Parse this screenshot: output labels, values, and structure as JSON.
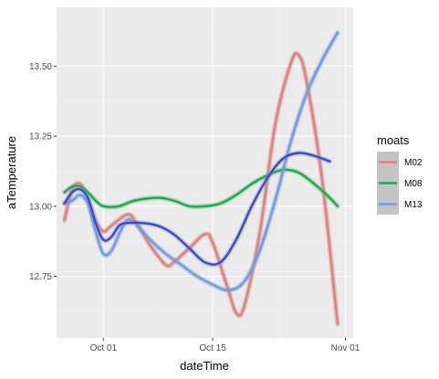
{
  "chart_data": {
    "type": "line",
    "xlabel": "dateTime",
    "ylabel": "aTemperature",
    "xlim": [
      "2020-09-25",
      "2020-11-02"
    ],
    "ylim": [
      12.53,
      13.71
    ],
    "x_ticks": [
      {
        "value": "2020-10-01",
        "label": "Oct 01"
      },
      {
        "value": "2020-10-15",
        "label": "Oct 15"
      },
      {
        "value": "2020-11-01",
        "label": "Nov 01"
      }
    ],
    "y_ticks": [
      {
        "value": 12.75,
        "label": "12.75"
      },
      {
        "value": 13.0,
        "label": "13.00"
      },
      {
        "value": 13.25,
        "label": "13.25"
      },
      {
        "value": 13.5,
        "label": "13.50"
      }
    ],
    "grid": true,
    "legend": {
      "title": "moats",
      "position": "right"
    },
    "series": [
      {
        "name": "M02",
        "color": "#F8766D",
        "points": [
          [
            "2020-09-26",
            12.95
          ],
          [
            "2020-09-27",
            13.06
          ],
          [
            "2020-09-28",
            13.08
          ],
          [
            "2020-09-29",
            13.03
          ],
          [
            "2020-09-30",
            12.95
          ],
          [
            "2020-10-01",
            12.91
          ],
          [
            "2020-10-02",
            12.93
          ],
          [
            "2020-10-04",
            12.97
          ],
          [
            "2020-10-05",
            12.95
          ],
          [
            "2020-10-07",
            12.86
          ],
          [
            "2020-10-09",
            12.79
          ],
          [
            "2020-10-10",
            12.8
          ],
          [
            "2020-10-12",
            12.85
          ],
          [
            "2020-10-14",
            12.9
          ],
          [
            "2020-10-15",
            12.87
          ],
          [
            "2020-10-17",
            12.7
          ],
          [
            "2020-10-18",
            12.62
          ],
          [
            "2020-10-19",
            12.64
          ],
          [
            "2020-10-21",
            12.9
          ],
          [
            "2020-10-23",
            13.29
          ],
          [
            "2020-10-25",
            13.51
          ],
          [
            "2020-10-26",
            13.54
          ],
          [
            "2020-10-27",
            13.45
          ],
          [
            "2020-10-29",
            13.1
          ],
          [
            "2020-10-31",
            12.58
          ]
        ]
      },
      {
        "name": "M08",
        "color": "#00BA38",
        "points": [
          [
            "2020-09-26",
            13.05
          ],
          [
            "2020-09-27",
            13.07
          ],
          [
            "2020-09-28",
            13.07
          ],
          [
            "2020-09-29",
            13.05
          ],
          [
            "2020-09-30",
            13.02
          ],
          [
            "2020-10-01",
            13.0
          ],
          [
            "2020-10-03",
            13.0
          ],
          [
            "2020-10-05",
            13.02
          ],
          [
            "2020-10-08",
            13.03
          ],
          [
            "2020-10-10",
            13.02
          ],
          [
            "2020-10-12",
            13.0
          ],
          [
            "2020-10-14",
            13.0
          ],
          [
            "2020-10-16",
            13.01
          ],
          [
            "2020-10-18",
            13.04
          ],
          [
            "2020-10-20",
            13.08
          ],
          [
            "2020-10-22",
            13.11
          ],
          [
            "2020-10-24",
            13.13
          ],
          [
            "2020-10-26",
            13.12
          ],
          [
            "2020-10-28",
            13.08
          ],
          [
            "2020-10-30",
            13.03
          ],
          [
            "2020-10-31",
            13.0
          ]
        ]
      },
      {
        "name": "M13",
        "color": "#619CFF",
        "points": [
          [
            "2020-09-26",
            13.01
          ],
          [
            "2020-09-27",
            13.02
          ],
          [
            "2020-09-28",
            13.04
          ],
          [
            "2020-09-29",
            13.01
          ],
          [
            "2020-09-30",
            12.91
          ],
          [
            "2020-10-01",
            12.83
          ],
          [
            "2020-10-02",
            12.84
          ],
          [
            "2020-10-03",
            12.9
          ],
          [
            "2020-10-04",
            12.95
          ],
          [
            "2020-10-05",
            12.94
          ],
          [
            "2020-10-07",
            12.88
          ],
          [
            "2020-10-09",
            12.83
          ],
          [
            "2020-10-11",
            12.79
          ],
          [
            "2020-10-13",
            12.75
          ],
          [
            "2020-10-15",
            12.72
          ],
          [
            "2020-10-17",
            12.7
          ],
          [
            "2020-10-19",
            12.73
          ],
          [
            "2020-10-21",
            12.84
          ],
          [
            "2020-10-23",
            13.02
          ],
          [
            "2020-10-25",
            13.23
          ],
          [
            "2020-10-27",
            13.4
          ],
          [
            "2020-10-29",
            13.52
          ],
          [
            "2020-10-31",
            13.62
          ]
        ]
      },
      {
        "name": "",
        "color": "#3547E0",
        "points": [
          [
            "2020-09-26",
            13.01
          ],
          [
            "2020-09-27",
            13.05
          ],
          [
            "2020-09-28",
            13.06
          ],
          [
            "2020-09-29",
            13.03
          ],
          [
            "2020-09-30",
            12.94
          ],
          [
            "2020-10-01",
            12.88
          ],
          [
            "2020-10-02",
            12.89
          ],
          [
            "2020-10-03",
            12.93
          ],
          [
            "2020-10-04",
            12.94
          ],
          [
            "2020-10-06",
            12.94
          ],
          [
            "2020-10-08",
            12.93
          ],
          [
            "2020-10-10",
            12.9
          ],
          [
            "2020-10-12",
            12.85
          ],
          [
            "2020-10-14",
            12.8
          ],
          [
            "2020-10-16",
            12.8
          ],
          [
            "2020-10-18",
            12.88
          ],
          [
            "2020-10-20",
            13.0
          ],
          [
            "2020-10-22",
            13.1
          ],
          [
            "2020-10-24",
            13.17
          ],
          [
            "2020-10-26",
            13.19
          ],
          [
            "2020-10-28",
            13.18
          ],
          [
            "2020-10-30",
            13.16
          ]
        ]
      }
    ]
  }
}
